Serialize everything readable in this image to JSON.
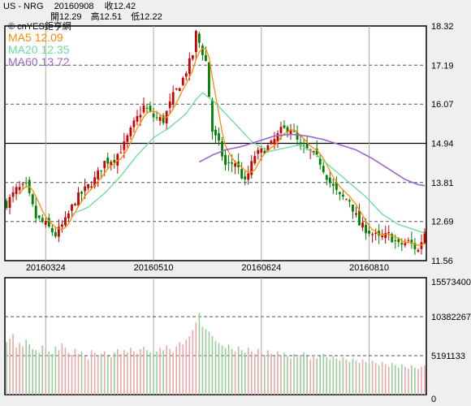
{
  "header": {
    "symbol": "US - NRG",
    "date": "20160908",
    "close_label": "收12.42",
    "open_label": "開12.29",
    "high_label": "高12.51",
    "low_label": "低12.22"
  },
  "brand": "© cnYES鉅亨網",
  "chart_data": [
    {
      "type": "candlestick",
      "y_axis": {
        "min": 11.56,
        "max": 18.32,
        "ticks": [
          "18.32",
          "17.19",
          "16.07",
          "14.94",
          "13.81",
          "12.69",
          "11.56"
        ]
      },
      "x_ticks": [
        "20160324",
        "20160510",
        "20160624",
        "20160810"
      ],
      "x_tick_index": [
        12,
        45,
        78,
        111
      ],
      "grid": true,
      "colors": {
        "up": "#cc0000",
        "down": "#008000",
        "ma5": "#ff8c00",
        "ma20": "#66dd99",
        "ma60": "#9966cc"
      },
      "moving_averages": [
        {
          "name": "MA5",
          "value": "12.09",
          "color": "#ff8c00"
        },
        {
          "name": "MA20",
          "value": "12.35",
          "color": "#66dd99"
        },
        {
          "name": "MA60",
          "value": "13.72",
          "color": "#9966cc"
        }
      ],
      "close_anchors": [
        [
          0,
          13.2
        ],
        [
          3,
          13.6
        ],
        [
          6,
          13.7
        ],
        [
          9,
          12.8
        ],
        [
          12,
          12.6
        ],
        [
          15,
          12.3
        ],
        [
          18,
          12.7
        ],
        [
          21,
          13.3
        ],
        [
          24,
          13.6
        ],
        [
          27,
          13.9
        ],
        [
          30,
          14.4
        ],
        [
          33,
          14.5
        ],
        [
          36,
          14.9
        ],
        [
          39,
          15.5
        ],
        [
          42,
          16.0
        ],
        [
          45,
          15.7
        ],
        [
          48,
          15.6
        ],
        [
          51,
          16.3
        ],
        [
          54,
          16.8
        ],
        [
          57,
          17.5
        ],
        [
          58,
          18.1
        ],
        [
          61,
          17.3
        ],
        [
          63,
          15.3
        ],
        [
          65,
          14.9
        ],
        [
          67,
          14.3
        ],
        [
          70,
          14.4
        ],
        [
          73,
          13.8
        ],
        [
          76,
          14.6
        ],
        [
          78,
          14.7
        ],
        [
          81,
          14.9
        ],
        [
          84,
          15.3
        ],
        [
          87,
          15.4
        ],
        [
          90,
          14.8
        ],
        [
          93,
          14.7
        ],
        [
          96,
          14.4
        ],
        [
          99,
          13.8
        ],
        [
          102,
          13.4
        ],
        [
          105,
          13.3
        ],
        [
          108,
          12.6
        ],
        [
          111,
          12.4
        ],
        [
          114,
          12.2
        ],
        [
          117,
          12.3
        ],
        [
          120,
          12.0
        ],
        [
          123,
          12.1
        ],
        [
          126,
          11.85
        ],
        [
          128,
          12.42
        ]
      ],
      "ma20_anchors": [
        [
          20,
          12.9
        ],
        [
          25,
          13.1
        ],
        [
          30,
          13.5
        ],
        [
          35,
          14.0
        ],
        [
          40,
          14.6
        ],
        [
          45,
          15.1
        ],
        [
          50,
          15.4
        ],
        [
          55,
          15.8
        ],
        [
          58,
          16.2
        ],
        [
          60,
          16.4
        ],
        [
          64,
          16.1
        ],
        [
          70,
          15.5
        ],
        [
          75,
          15.0
        ],
        [
          80,
          14.7
        ],
        [
          85,
          14.8
        ],
        [
          90,
          14.9
        ],
        [
          95,
          14.6
        ],
        [
          100,
          14.2
        ],
        [
          105,
          13.8
        ],
        [
          110,
          13.4
        ],
        [
          115,
          12.9
        ],
        [
          120,
          12.6
        ],
        [
          125,
          12.45
        ],
        [
          128,
          12.35
        ]
      ],
      "ma60_anchors": [
        [
          59,
          14.4
        ],
        [
          63,
          14.6
        ],
        [
          67,
          14.75
        ],
        [
          72,
          14.85
        ],
        [
          77,
          15.0
        ],
        [
          82,
          15.15
        ],
        [
          87,
          15.2
        ],
        [
          92,
          15.15
        ],
        [
          97,
          15.05
        ],
        [
          102,
          14.9
        ],
        [
          107,
          14.75
        ],
        [
          112,
          14.5
        ],
        [
          117,
          14.2
        ],
        [
          122,
          13.9
        ],
        [
          126,
          13.75
        ],
        [
          128,
          13.72
        ]
      ]
    },
    {
      "type": "bar",
      "y_axis": {
        "min": 0,
        "max": 15573400,
        "ticks": [
          "15573400",
          "10382267",
          "5191133",
          "0"
        ]
      },
      "volume_level": [
        0.45,
        0.48,
        0.52,
        0.4,
        0.44,
        0.41,
        0.47,
        0.43,
        0.39,
        0.38,
        0.36,
        0.42,
        0.4,
        0.37,
        0.35,
        0.41,
        0.38,
        0.44,
        0.4,
        0.36,
        0.34,
        0.39,
        0.35,
        0.37,
        0.33,
        0.3,
        0.38,
        0.36,
        0.34,
        0.35,
        0.37,
        0.33,
        0.32,
        0.36,
        0.39,
        0.35,
        0.38,
        0.36,
        0.4,
        0.37,
        0.35,
        0.39,
        0.41,
        0.38,
        0.36,
        0.34,
        0.37,
        0.4,
        0.38,
        0.42,
        0.39,
        0.36,
        0.41,
        0.45,
        0.43,
        0.47,
        0.5,
        0.55,
        0.62,
        0.7,
        0.58,
        0.56,
        0.54,
        0.5,
        0.46,
        0.44,
        0.42,
        0.4,
        0.43,
        0.39,
        0.37,
        0.41,
        0.38,
        0.36,
        0.4,
        0.37,
        0.35,
        0.39,
        0.36,
        0.34,
        0.38,
        0.35,
        0.33,
        0.37,
        0.34,
        0.36,
        0.33,
        0.31,
        0.35,
        0.32,
        0.34,
        0.36,
        0.33,
        0.3,
        0.34,
        0.31,
        0.33,
        0.35,
        0.32,
        0.3,
        0.33,
        0.31,
        0.29,
        0.32,
        0.3,
        0.28,
        0.31,
        0.29,
        0.27,
        0.3,
        0.28,
        0.26,
        0.29,
        0.27,
        0.25,
        0.28,
        0.26,
        0.24,
        0.27,
        0.25,
        0.23,
        0.26,
        0.24,
        0.22,
        0.25,
        0.23,
        0.22,
        0.24,
        0.25
      ]
    }
  ]
}
